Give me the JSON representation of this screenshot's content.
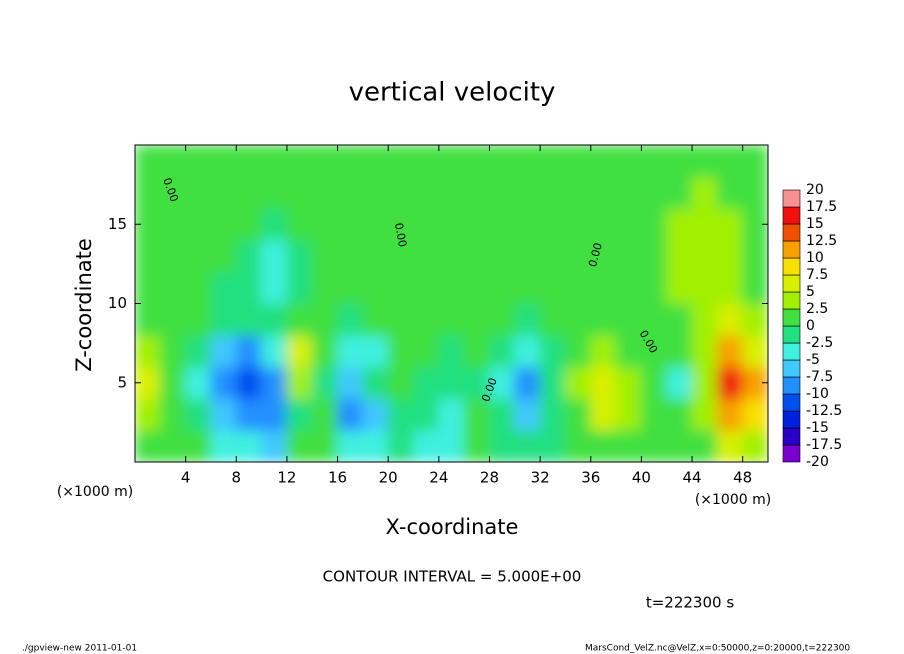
{
  "chart_data": {
    "type": "heatmap",
    "title": "vertical velocity",
    "x_label": "X-coordinate",
    "y_label": "Z-coordinate",
    "x_unit": "(×1000 m)",
    "annotation": "CONTOUR INTERVAL = 5.000E+00",
    "time_label": "t=222300 s",
    "contour_label": "0.00",
    "footer_left": "./gpview-new  2011-01-01",
    "footer_right": "MarsCond_VelZ.nc@VelZ,x=0:50000,z=0:20000,t=222300",
    "xlim": [
      0,
      50
    ],
    "ylim": [
      0,
      20
    ],
    "xticks": [
      4,
      8,
      12,
      16,
      20,
      24,
      28,
      32,
      36,
      40,
      44,
      48
    ],
    "yticks": [
      5,
      10,
      15
    ],
    "x_edges": [
      0,
      2,
      4,
      6,
      8,
      10,
      12,
      14,
      16,
      18,
      20,
      22,
      24,
      26,
      28,
      30,
      32,
      34,
      36,
      38,
      40,
      42,
      44,
      46,
      48,
      50
    ],
    "z_edges": [
      0,
      2,
      4,
      6,
      8,
      10,
      12,
      14,
      16,
      18,
      20
    ],
    "values": [
      [
        2,
        1,
        0,
        -3,
        -5,
        -7,
        0,
        1,
        -5,
        -3,
        -2,
        -3,
        -3,
        0,
        -1,
        -2,
        -1,
        1,
        2,
        2,
        1,
        1,
        2,
        5,
        4
      ],
      [
        4,
        1,
        -2,
        -6,
        -10,
        -9,
        -1,
        1,
        -10,
        -6,
        -1,
        -2,
        -3,
        0,
        -1,
        -6,
        -1,
        2,
        5,
        3,
        1,
        1,
        3,
        12,
        8
      ],
      [
        6,
        1,
        -3,
        -8,
        -12,
        -10,
        3,
        -2,
        -7,
        -2,
        0,
        -1,
        -2,
        -1,
        -3,
        -10,
        -2,
        3,
        6,
        3,
        1,
        -3,
        3,
        16,
        10
      ],
      [
        4,
        1,
        -2,
        -6,
        -9,
        -4,
        6,
        2,
        -5,
        -3,
        0,
        1,
        -1,
        0,
        -2,
        -5,
        -1,
        2,
        4,
        2,
        1,
        0,
        3,
        12,
        7
      ],
      [
        2,
        1,
        0,
        -2,
        -2,
        -1,
        2,
        0,
        -1,
        0,
        1,
        0,
        1,
        0,
        0,
        -1,
        0,
        1,
        1,
        1,
        2,
        2,
        3,
        5,
        3
      ],
      [
        1,
        1,
        1,
        -1,
        -2,
        -3,
        -1,
        0,
        1,
        1,
        1,
        1,
        0,
        1,
        1,
        1,
        1,
        1,
        1,
        2,
        2,
        3,
        3,
        3,
        2
      ],
      [
        1,
        1,
        1,
        0,
        -1,
        -3,
        -2,
        0,
        1,
        1,
        1,
        0,
        1,
        1,
        1,
        1,
        1,
        1,
        2,
        2,
        2,
        3,
        4,
        3,
        2
      ],
      [
        1,
        1,
        1,
        1,
        0,
        -1,
        0,
        1,
        1,
        1,
        0,
        1,
        1,
        1,
        1,
        1,
        1,
        1,
        2,
        2,
        2,
        3,
        4,
        3,
        2
      ],
      [
        1,
        1,
        1,
        1,
        1,
        1,
        1,
        1,
        1,
        1,
        1,
        1,
        1,
        1,
        1,
        1,
        1,
        1,
        2,
        2,
        2,
        2,
        3,
        2,
        2
      ],
      [
        1,
        1,
        1,
        1,
        1,
        1,
        1,
        1,
        1,
        1,
        1,
        1,
        1,
        1,
        1,
        1,
        1,
        1,
        2,
        2,
        2,
        2,
        2,
        2,
        2
      ]
    ],
    "levels": [
      -20,
      -17.5,
      -15,
      -12.5,
      -10,
      -7.5,
      -5,
      -2.5,
      0,
      2.5,
      5,
      7.5,
      10,
      12.5,
      15,
      17.5,
      20
    ],
    "colors": [
      "#7a00d0",
      "#2a00c8",
      "#0020e0",
      "#0050f0",
      "#2090ff",
      "#40c8ff",
      "#40f0e0",
      "#20e080",
      "#40e040",
      "#a0f000",
      "#d8f000",
      "#f8e000",
      "#f8a000",
      "#f05000",
      "#f01010",
      "#f89090"
    ]
  }
}
